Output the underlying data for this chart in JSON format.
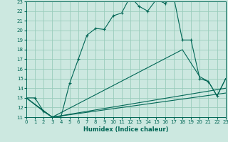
{
  "title": "",
  "xlabel": "Humidex (Indice chaleur)",
  "bg_color": "#cce8e0",
  "grid_color": "#99ccbb",
  "line_color": "#006655",
  "xmin": 0,
  "xmax": 23,
  "ymin": 11,
  "ymax": 23,
  "x_ticks": [
    0,
    1,
    2,
    3,
    4,
    5,
    6,
    7,
    8,
    9,
    10,
    11,
    12,
    13,
    14,
    15,
    16,
    17,
    18,
    19,
    20,
    21,
    22,
    23
  ],
  "y_ticks": [
    11,
    12,
    13,
    14,
    15,
    16,
    17,
    18,
    19,
    20,
    21,
    22,
    23
  ],
  "main_line": [
    [
      0,
      13.0
    ],
    [
      1,
      13.0
    ],
    [
      2,
      11.6
    ],
    [
      3,
      11.0
    ],
    [
      4,
      11.0
    ],
    [
      5,
      14.5
    ],
    [
      6,
      17.0
    ],
    [
      7,
      19.5
    ],
    [
      8,
      20.2
    ],
    [
      9,
      20.1
    ],
    [
      10,
      21.5
    ],
    [
      11,
      21.8
    ],
    [
      12,
      23.5
    ],
    [
      13,
      22.5
    ],
    [
      14,
      22.0
    ],
    [
      15,
      23.2
    ],
    [
      16,
      22.8
    ],
    [
      17,
      23.5
    ],
    [
      18,
      19.0
    ],
    [
      19,
      19.0
    ],
    [
      20,
      15.0
    ],
    [
      21,
      14.7
    ],
    [
      22,
      13.2
    ],
    [
      23,
      15.0
    ]
  ],
  "lower_line1": [
    [
      0,
      13.0
    ],
    [
      2,
      11.6
    ],
    [
      3,
      11.0
    ],
    [
      18,
      18.0
    ],
    [
      20,
      15.2
    ],
    [
      21,
      14.7
    ],
    [
      22,
      13.2
    ],
    [
      23,
      15.0
    ]
  ],
  "lower_line2": [
    [
      0,
      13.0
    ],
    [
      3,
      11.0
    ],
    [
      23,
      14.0
    ]
  ],
  "lower_line3": [
    [
      0,
      13.0
    ],
    [
      3,
      11.0
    ],
    [
      23,
      13.5
    ]
  ]
}
